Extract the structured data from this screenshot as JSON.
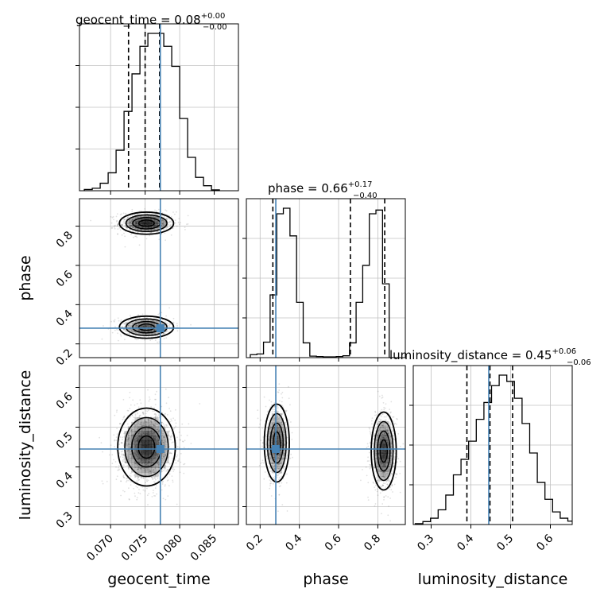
{
  "chart_data": {
    "type": "corner",
    "parameters": [
      "geocent_time",
      "phase",
      "luminosity_distance"
    ],
    "truths": {
      "geocent_time": 0.0772,
      "phase": 0.28,
      "luminosity_distance": 0.445
    },
    "colors": {
      "truth": "#4682b4",
      "hist": "#000000",
      "grid": "#c0c0c0",
      "density": "#000000"
    },
    "titles": {
      "geocent_time": {
        "label": "geocent_time = 0.08",
        "plus": "+0.00",
        "minus": "−0.00"
      },
      "phase": {
        "label": "phase = 0.66",
        "plus": "+0.17",
        "minus": "−0.40"
      },
      "luminosity_distance": {
        "label": "luminosity_distance = 0.45",
        "plus": "+0.06",
        "minus": "−0.06"
      }
    },
    "axis_labels": {
      "geocent_time": "geocent_time",
      "phase": "phase",
      "luminosity_distance": "luminosity_distance"
    },
    "ranges": {
      "geocent_time": [
        0.0655,
        0.0885
      ],
      "phase": [
        0.13,
        0.94
      ],
      "luminosity_distance": [
        0.255,
        0.655
      ]
    },
    "ticks": {
      "geocent_time": [
        "0.070",
        "0.075",
        "0.080",
        "0.085"
      ],
      "phase": [
        "0.2",
        "0.4",
        "0.6",
        "0.8"
      ],
      "phase_y": [
        "0.2",
        "0.4",
        "0.6",
        "0.8"
      ],
      "luminosity_distance": [
        "0.3",
        "0.4",
        "0.5",
        "0.6"
      ]
    },
    "quantile_lines": {
      "geocent_time": [
        0.0726,
        0.075,
        0.0771
      ],
      "phase": [
        0.265,
        0.66,
        0.835
      ],
      "luminosity_distance": [
        0.39,
        0.448,
        0.505
      ]
    },
    "histograms": {
      "geocent_time": {
        "edges_start": 0.0662,
        "bin_width": 0.00115,
        "counts": [
          0.3,
          0.6,
          1.8,
          4.3,
          9.7,
          19.0,
          28.0,
          34.6,
          37.7,
          37.7,
          34.6,
          29.8,
          17.3,
          8.0,
          3.2,
          1.2,
          0.2
        ]
      },
      "phase": {
        "edges_start": 0.15,
        "bin_width": 0.0337,
        "counts": [
          0.8,
          1.0,
          4.2,
          17.0,
          39.0,
          40.5,
          33.0,
          15.0,
          4.0,
          0.4,
          0.3,
          0.2,
          0.2,
          0.3,
          0.5,
          4.0,
          15.0,
          25.0,
          39.0,
          40.0,
          20.0,
          0.0
        ]
      },
      "luminosity_distance": {
        "edges_start": 0.26,
        "bin_width": 0.0192,
        "counts": [
          0.2,
          0.7,
          1.5,
          3.5,
          7.0,
          11.8,
          15.5,
          19.8,
          25.0,
          29.0,
          33.0,
          35.5,
          34.0,
          30.0,
          24.0,
          17.0,
          10.0,
          6.0,
          3.0,
          1.5,
          0.8
        ]
      }
    },
    "modes_2d": {
      "geocent_time_vs_phase": [
        {
          "x": 0.0752,
          "y": 0.815,
          "w": 0.6
        },
        {
          "x": 0.0752,
          "y": 0.285,
          "w": 0.4
        }
      ],
      "geocent_time_vs_luminosity_distance": [
        {
          "x": 0.0752,
          "y": 0.45,
          "w": 1.0
        }
      ],
      "phase_vs_luminosity_distance": [
        {
          "x": 0.285,
          "y": 0.46,
          "w": 0.45
        },
        {
          "x": 0.83,
          "y": 0.44,
          "w": 0.55
        }
      ]
    },
    "grid": true
  }
}
